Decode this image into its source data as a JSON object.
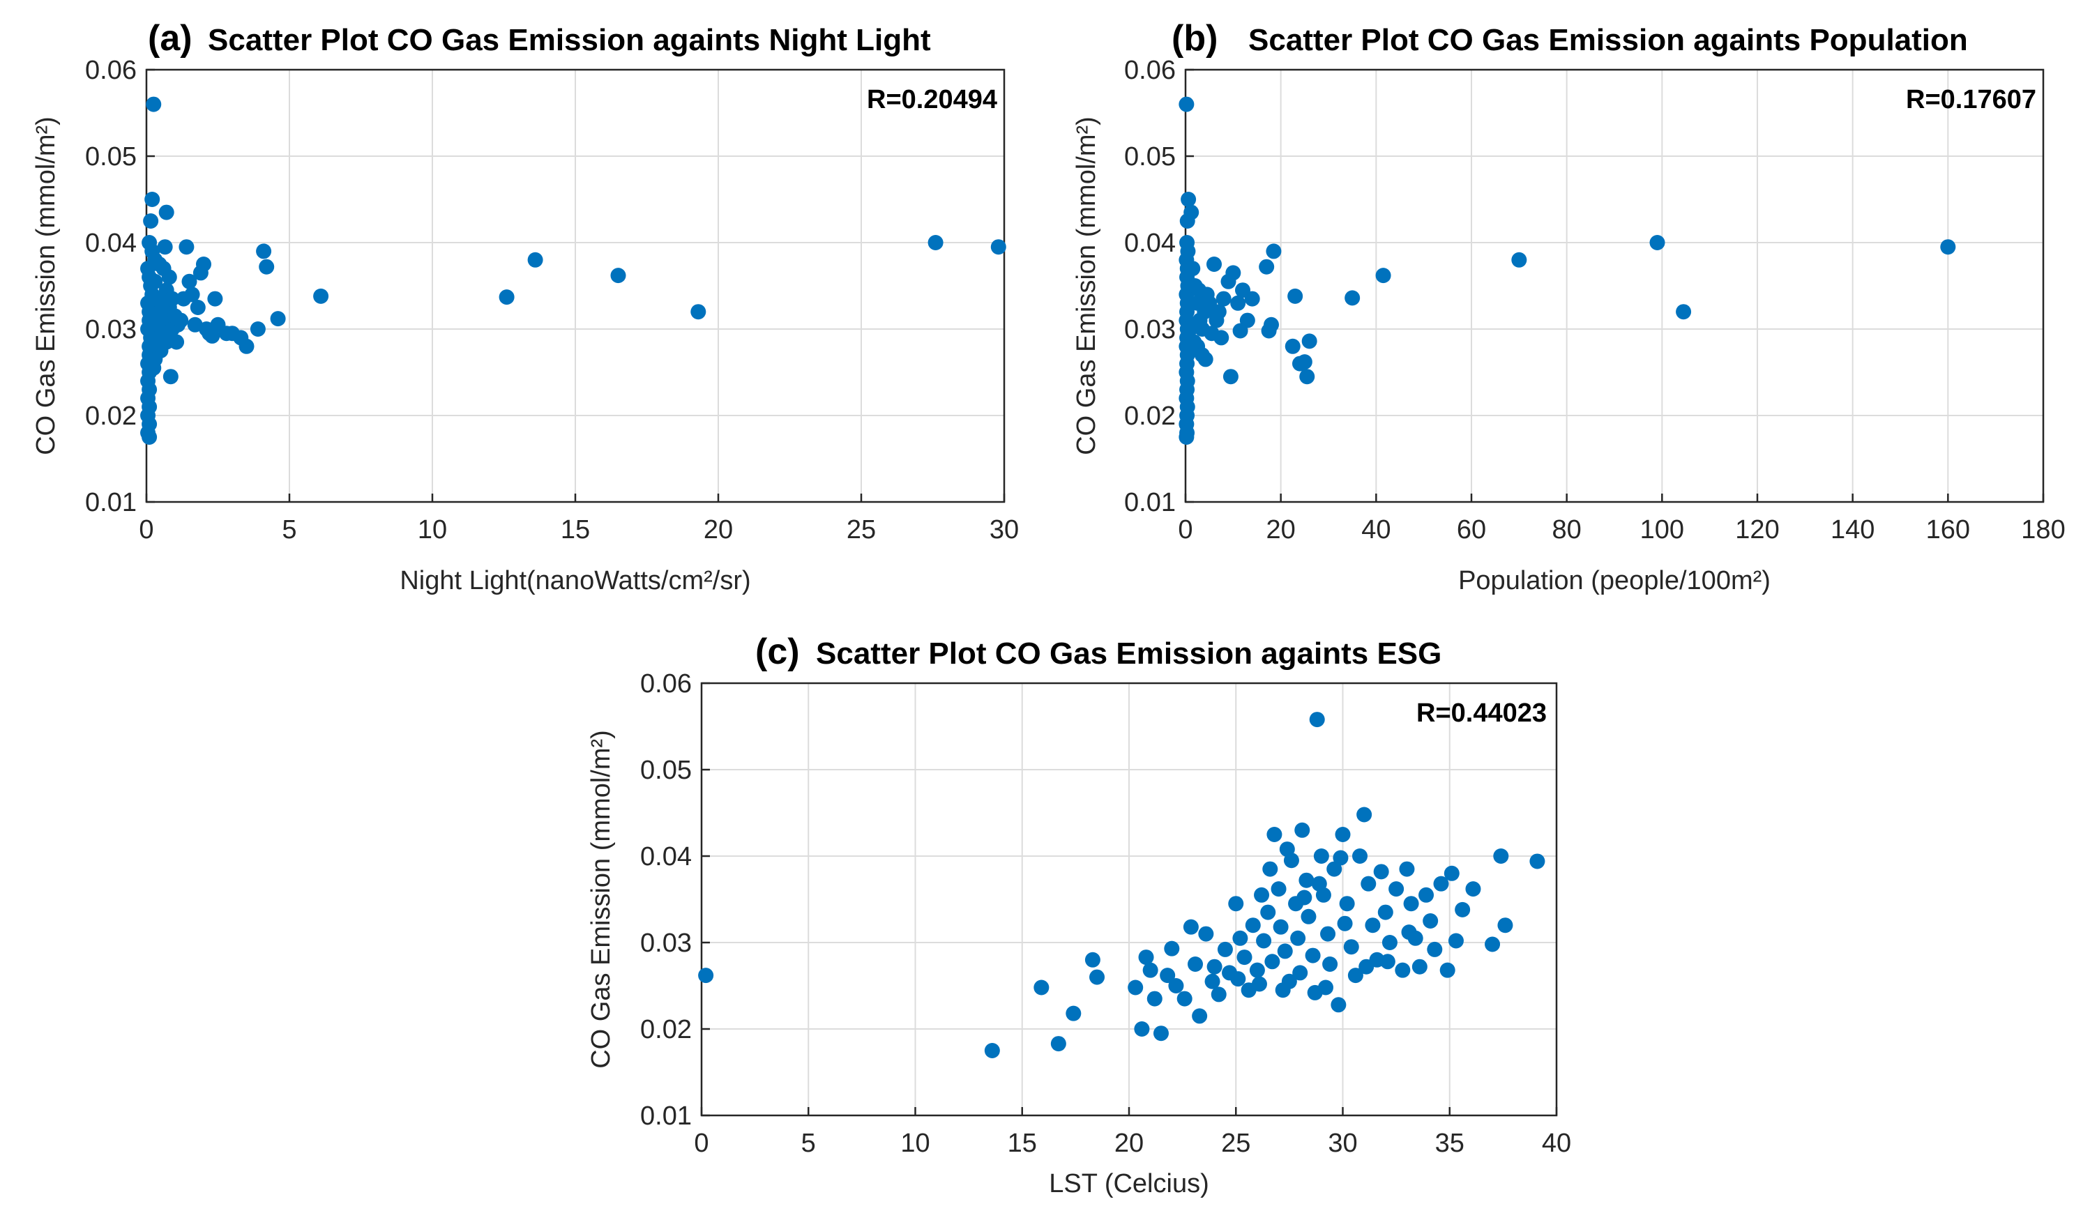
{
  "colors": {
    "marker": "#0072BD",
    "grid": "#dcdcdc",
    "axis": "#262626",
    "background": "#ffffff"
  },
  "chart_data": [
    {
      "type": "scatter",
      "panel_label": "(a)",
      "title": "Scatter Plot CO Gas Emission againts Night Light",
      "xlabel": "Night Light(nanoWatts/cm²/sr)",
      "ylabel": "CO Gas Emission (mmol/m²)",
      "xlim": [
        0,
        30
      ],
      "ylim": [
        0.01,
        0.06
      ],
      "xticks": [
        0,
        5,
        10,
        15,
        20,
        25,
        30
      ],
      "yticks": [
        0.01,
        0.02,
        0.03,
        0.04,
        0.05,
        0.06
      ],
      "xtick_labels": [
        "0",
        "5",
        "10",
        "15",
        "20",
        "25",
        "30"
      ],
      "ytick_labels": [
        "0.01",
        "0.02",
        "0.03",
        "0.04",
        "0.05",
        "0.06"
      ],
      "annotation": "R=0.20494",
      "grid": true,
      "points": [
        [
          0.25,
          0.056
        ],
        [
          0.2,
          0.045
        ],
        [
          0.7,
          0.0435
        ],
        [
          0.15,
          0.0425
        ],
        [
          0.1,
          0.04
        ],
        [
          0.2,
          0.039
        ],
        [
          0.3,
          0.038
        ],
        [
          0.05,
          0.037
        ],
        [
          0.1,
          0.036
        ],
        [
          0.15,
          0.035
        ],
        [
          0.2,
          0.034
        ],
        [
          0.05,
          0.033
        ],
        [
          0.1,
          0.032
        ],
        [
          0.1,
          0.031
        ],
        [
          0.05,
          0.03
        ],
        [
          0.15,
          0.029
        ],
        [
          0.1,
          0.028
        ],
        [
          0.1,
          0.027
        ],
        [
          0.05,
          0.026
        ],
        [
          0.1,
          0.025
        ],
        [
          0.05,
          0.024
        ],
        [
          0.1,
          0.023
        ],
        [
          0.05,
          0.022
        ],
        [
          0.1,
          0.021
        ],
        [
          0.05,
          0.02
        ],
        [
          0.1,
          0.019
        ],
        [
          0.05,
          0.018
        ],
        [
          0.1,
          0.0175
        ],
        [
          0.3,
          0.0355
        ],
        [
          0.35,
          0.0335
        ],
        [
          0.4,
          0.0315
        ],
        [
          0.45,
          0.0295
        ],
        [
          0.5,
          0.0275
        ],
        [
          0.3,
          0.0265
        ],
        [
          0.6,
          0.037
        ],
        [
          0.7,
          0.0345
        ],
        [
          0.8,
          0.0325
        ],
        [
          0.6,
          0.031
        ],
        [
          0.9,
          0.03
        ],
        [
          0.7,
          0.0285
        ],
        [
          0.5,
          0.0335
        ],
        [
          0.4,
          0.0305
        ],
        [
          0.35,
          0.0285
        ],
        [
          0.25,
          0.0255
        ],
        [
          0.55,
          0.0325
        ],
        [
          0.8,
          0.036
        ],
        [
          0.9,
          0.0335
        ],
        [
          1.0,
          0.0315
        ],
        [
          1.1,
          0.0305
        ],
        [
          0.85,
          0.0245
        ],
        [
          1.2,
          0.031
        ],
        [
          1.4,
          0.0395
        ],
        [
          1.5,
          0.0355
        ],
        [
          1.3,
          0.0335
        ],
        [
          1.6,
          0.034
        ],
        [
          1.8,
          0.0325
        ],
        [
          1.9,
          0.0365
        ],
        [
          2.0,
          0.0375
        ],
        [
          2.1,
          0.03
        ],
        [
          2.2,
          0.0295
        ],
        [
          2.4,
          0.0335
        ],
        [
          2.5,
          0.0305
        ],
        [
          2.8,
          0.0295
        ],
        [
          3.0,
          0.0295
        ],
        [
          3.3,
          0.029
        ],
        [
          3.5,
          0.028
        ],
        [
          3.9,
          0.03
        ],
        [
          4.1,
          0.039
        ],
        [
          4.2,
          0.0372
        ],
        [
          4.6,
          0.0312
        ],
        [
          6.1,
          0.0338
        ],
        [
          12.6,
          0.0337
        ],
        [
          13.6,
          0.038
        ],
        [
          16.5,
          0.0362
        ],
        [
          19.3,
          0.032
        ],
        [
          27.6,
          0.04
        ],
        [
          29.8,
          0.0395
        ],
        [
          1.05,
          0.0285
        ],
        [
          1.7,
          0.0305
        ],
        [
          2.3,
          0.0292
        ],
        [
          0.65,
          0.0395
        ],
        [
          0.45,
          0.0375
        ]
      ]
    },
    {
      "type": "scatter",
      "panel_label": "(b)",
      "title": "Scatter Plot CO Gas Emission againts Population",
      "xlabel": "Population (people/100m²)",
      "ylabel": "CO Gas Emission (mmol/m²)",
      "xlim": [
        0,
        180
      ],
      "ylim": [
        0.01,
        0.06
      ],
      "xticks": [
        0,
        20,
        40,
        60,
        80,
        100,
        120,
        140,
        160,
        180
      ],
      "yticks": [
        0.01,
        0.02,
        0.03,
        0.04,
        0.05,
        0.06
      ],
      "xtick_labels": [
        "0",
        "20",
        "40",
        "60",
        "80",
        "100",
        "120",
        "140",
        "160",
        "180"
      ],
      "ytick_labels": [
        "0.01",
        "0.02",
        "0.03",
        "0.04",
        "0.05",
        "0.06"
      ],
      "annotation": "R=0.17607",
      "grid": true,
      "points": [
        [
          0.2,
          0.056
        ],
        [
          0.6,
          0.045
        ],
        [
          1.2,
          0.0435
        ],
        [
          0.4,
          0.0425
        ],
        [
          0.3,
          0.04
        ],
        [
          0.5,
          0.039
        ],
        [
          0.2,
          0.038
        ],
        [
          0.4,
          0.037
        ],
        [
          0.3,
          0.036
        ],
        [
          0.5,
          0.035
        ],
        [
          0.2,
          0.034
        ],
        [
          0.4,
          0.033
        ],
        [
          0.3,
          0.032
        ],
        [
          0.2,
          0.031
        ],
        [
          0.4,
          0.03
        ],
        [
          0.3,
          0.029
        ],
        [
          0.2,
          0.028
        ],
        [
          0.4,
          0.027
        ],
        [
          0.3,
          0.026
        ],
        [
          0.2,
          0.025
        ],
        [
          0.4,
          0.024
        ],
        [
          0.3,
          0.023
        ],
        [
          0.2,
          0.022
        ],
        [
          0.4,
          0.021
        ],
        [
          0.3,
          0.02
        ],
        [
          0.2,
          0.019
        ],
        [
          0.3,
          0.018
        ],
        [
          0.2,
          0.0175
        ],
        [
          1.5,
          0.037
        ],
        [
          2.0,
          0.035
        ],
        [
          2.5,
          0.033
        ],
        [
          3.0,
          0.031
        ],
        [
          3.5,
          0.03
        ],
        [
          4.0,
          0.032
        ],
        [
          4.5,
          0.034
        ],
        [
          5.0,
          0.033
        ],
        [
          6.0,
          0.0375
        ],
        [
          6.5,
          0.031
        ],
        [
          7.0,
          0.032
        ],
        [
          8.0,
          0.0335
        ],
        [
          9.0,
          0.0355
        ],
        [
          10.0,
          0.0365
        ],
        [
          11.0,
          0.033
        ],
        [
          12.0,
          0.0345
        ],
        [
          13.0,
          0.031
        ],
        [
          2.5,
          0.028
        ],
        [
          3.5,
          0.027
        ],
        [
          1.8,
          0.0285
        ],
        [
          9.5,
          0.0245
        ],
        [
          17.0,
          0.0372
        ],
        [
          18.5,
          0.039
        ],
        [
          18.0,
          0.0305
        ],
        [
          17.5,
          0.0298
        ],
        [
          23.0,
          0.0338
        ],
        [
          22.5,
          0.028
        ],
        [
          24.0,
          0.026
        ],
        [
          25.0,
          0.0262
        ],
        [
          26.0,
          0.0286
        ],
        [
          25.5,
          0.0245
        ],
        [
          35.0,
          0.0336
        ],
        [
          41.5,
          0.0362
        ],
        [
          70.0,
          0.038
        ],
        [
          99.0,
          0.04
        ],
        [
          104.5,
          0.032
        ],
        [
          160.0,
          0.0395
        ],
        [
          5.5,
          0.0295
        ],
        [
          7.5,
          0.029
        ],
        [
          11.5,
          0.0298
        ],
        [
          14.0,
          0.0335
        ],
        [
          4.2,
          0.0265
        ],
        [
          2.8,
          0.0345
        ],
        [
          1.0,
          0.03
        ]
      ]
    },
    {
      "type": "scatter",
      "panel_label": "(c)",
      "title": "Scatter Plot CO Gas Emission againts ESG",
      "xlabel": "LST (Celcius)",
      "ylabel": "CO Gas Emission (mmol/m²)",
      "xlim": [
        0,
        40
      ],
      "ylim": [
        0.01,
        0.06
      ],
      "xticks": [
        0,
        5,
        10,
        15,
        20,
        25,
        30,
        35,
        40
      ],
      "yticks": [
        0.01,
        0.02,
        0.03,
        0.04,
        0.05,
        0.06
      ],
      "xtick_labels": [
        "0",
        "5",
        "10",
        "15",
        "20",
        "25",
        "30",
        "35",
        "40"
      ],
      "ytick_labels": [
        "0.01",
        "0.02",
        "0.03",
        "0.04",
        "0.05",
        "0.06"
      ],
      "annotation": "R=0.44023",
      "grid": true,
      "points": [
        [
          0.2,
          0.0262
        ],
        [
          13.6,
          0.0175
        ],
        [
          15.9,
          0.0248
        ],
        [
          16.7,
          0.0183
        ],
        [
          17.4,
          0.0218
        ],
        [
          18.3,
          0.028
        ],
        [
          18.5,
          0.026
        ],
        [
          20.3,
          0.0248
        ],
        [
          20.6,
          0.02
        ],
        [
          20.8,
          0.0283
        ],
        [
          21.0,
          0.0268
        ],
        [
          21.2,
          0.0235
        ],
        [
          21.5,
          0.0195
        ],
        [
          21.8,
          0.0262
        ],
        [
          22.0,
          0.0293
        ],
        [
          22.2,
          0.025
        ],
        [
          22.6,
          0.0235
        ],
        [
          22.9,
          0.0318
        ],
        [
          23.1,
          0.0275
        ],
        [
          23.3,
          0.0215
        ],
        [
          23.6,
          0.031
        ],
        [
          23.9,
          0.0255
        ],
        [
          24.2,
          0.024
        ],
        [
          24.5,
          0.0292
        ],
        [
          24.7,
          0.0265
        ],
        [
          25.0,
          0.0345
        ],
        [
          25.2,
          0.0305
        ],
        [
          25.4,
          0.0283
        ],
        [
          25.6,
          0.0245
        ],
        [
          25.8,
          0.032
        ],
        [
          26.0,
          0.0268
        ],
        [
          26.2,
          0.0355
        ],
        [
          26.3,
          0.0302
        ],
        [
          26.5,
          0.0335
        ],
        [
          26.7,
          0.0278
        ],
        [
          26.8,
          0.0425
        ],
        [
          27.0,
          0.0362
        ],
        [
          27.1,
          0.0318
        ],
        [
          27.3,
          0.029
        ],
        [
          27.5,
          0.0255
        ],
        [
          27.6,
          0.0395
        ],
        [
          27.8,
          0.0345
        ],
        [
          27.9,
          0.0305
        ],
        [
          28.0,
          0.0265
        ],
        [
          28.1,
          0.043
        ],
        [
          28.3,
          0.0372
        ],
        [
          28.4,
          0.033
        ],
        [
          28.6,
          0.0285
        ],
        [
          28.7,
          0.0242
        ],
        [
          28.8,
          0.0558
        ],
        [
          29.0,
          0.04
        ],
        [
          29.1,
          0.0355
        ],
        [
          29.3,
          0.031
        ],
        [
          29.4,
          0.0275
        ],
        [
          29.6,
          0.0385
        ],
        [
          29.8,
          0.0228
        ],
        [
          30.0,
          0.0425
        ],
        [
          30.2,
          0.0345
        ],
        [
          30.4,
          0.0295
        ],
        [
          30.6,
          0.0262
        ],
        [
          30.8,
          0.04
        ],
        [
          31.0,
          0.0448
        ],
        [
          31.2,
          0.0368
        ],
        [
          31.4,
          0.032
        ],
        [
          31.6,
          0.028
        ],
        [
          31.8,
          0.0382
        ],
        [
          32.0,
          0.0335
        ],
        [
          32.2,
          0.03
        ],
        [
          32.5,
          0.0362
        ],
        [
          32.8,
          0.0268
        ],
        [
          33.0,
          0.0385
        ],
        [
          33.2,
          0.0345
        ],
        [
          33.4,
          0.0305
        ],
        [
          33.6,
          0.0272
        ],
        [
          33.9,
          0.0355
        ],
        [
          34.1,
          0.0325
        ],
        [
          34.3,
          0.0292
        ],
        [
          34.6,
          0.0368
        ],
        [
          34.9,
          0.0268
        ],
        [
          35.1,
          0.038
        ],
        [
          35.3,
          0.0302
        ],
        [
          35.6,
          0.0338
        ],
        [
          36.1,
          0.0362
        ],
        [
          37.0,
          0.0298
        ],
        [
          37.4,
          0.04
        ],
        [
          37.6,
          0.032
        ],
        [
          39.1,
          0.0394
        ],
        [
          26.1,
          0.0252
        ],
        [
          27.2,
          0.0245
        ],
        [
          28.2,
          0.0352
        ],
        [
          29.2,
          0.0248
        ],
        [
          30.1,
          0.0322
        ],
        [
          31.1,
          0.0272
        ],
        [
          32.1,
          0.0278
        ],
        [
          33.1,
          0.0312
        ],
        [
          24.0,
          0.0272
        ],
        [
          25.1,
          0.0258
        ],
        [
          26.6,
          0.0385
        ],
        [
          27.4,
          0.0408
        ],
        [
          28.9,
          0.0368
        ],
        [
          29.9,
          0.0398
        ]
      ]
    }
  ]
}
